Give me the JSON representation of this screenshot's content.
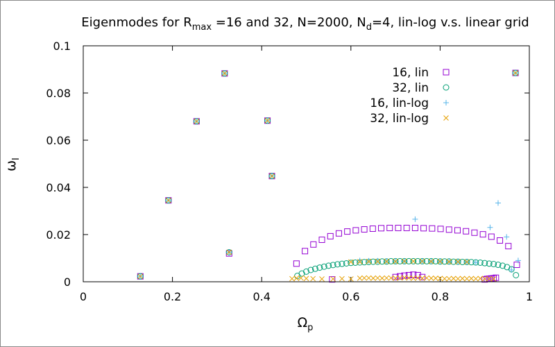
{
  "title": {
    "parts": [
      {
        "text": "Eigenmodes for R",
        "sub": false
      },
      {
        "text": "max",
        "sub": true
      },
      {
        "text": " =16 and 32, N=2000, N",
        "sub": false
      },
      {
        "text": "d",
        "sub": true
      },
      {
        "text": "=4, lin-log v.s. linear grid",
        "sub": false
      }
    ]
  },
  "axes": {
    "xlabel": {
      "main": "Ω",
      "sub": "p"
    },
    "ylabel": {
      "main": "ω",
      "sub": "I"
    }
  },
  "chart_data": {
    "type": "scatter",
    "xlim": [
      0,
      1
    ],
    "ylim": [
      0,
      0.1
    ],
    "xticks": [
      0,
      0.2,
      0.4,
      0.6,
      0.8,
      1
    ],
    "xtick_labels": [
      "0",
      "0.2",
      "0.4",
      "0.6",
      "0.8",
      "1"
    ],
    "yticks": [
      0,
      0.02,
      0.04,
      0.06,
      0.08,
      0.1
    ],
    "ytick_labels": [
      "0",
      "0.02",
      "0.04",
      "0.06",
      "0.08",
      "0.1"
    ],
    "grid": false,
    "legend_position": "top-right",
    "series": [
      {
        "name": "16, lin",
        "marker": "square",
        "color": "#9400d3",
        "x": [
          0.128,
          0.191,
          0.254,
          0.317,
          0.327,
          0.413,
          0.423,
          0.478,
          0.497,
          0.516,
          0.535,
          0.554,
          0.573,
          0.592,
          0.611,
          0.63,
          0.649,
          0.668,
          0.687,
          0.706,
          0.725,
          0.744,
          0.763,
          0.782,
          0.801,
          0.82,
          0.839,
          0.858,
          0.877,
          0.896,
          0.915,
          0.934,
          0.953,
          0.972,
          0.969,
          0.558,
          0.7,
          0.71,
          0.72,
          0.73,
          0.74,
          0.75,
          0.76,
          0.9,
          0.905,
          0.91,
          0.915,
          0.92,
          0.925
        ],
        "y": [
          0.0023,
          0.0345,
          0.068,
          0.0883,
          0.012,
          0.0683,
          0.0448,
          0.0077,
          0.013,
          0.0158,
          0.0178,
          0.0193,
          0.0205,
          0.0213,
          0.0218,
          0.0222,
          0.0225,
          0.0227,
          0.0228,
          0.0228,
          0.0228,
          0.0228,
          0.0227,
          0.0226,
          0.0224,
          0.0221,
          0.0218,
          0.0214,
          0.0208,
          0.0201,
          0.0191,
          0.0175,
          0.0151,
          0.0072,
          0.0885,
          0.001,
          0.002,
          0.0023,
          0.0026,
          0.0028,
          0.003,
          0.0028,
          0.002,
          0.001,
          0.0012,
          0.0013,
          0.0014,
          0.0015,
          0.0017
        ]
      },
      {
        "name": "32, lin",
        "marker": "circle",
        "color": "#009e73",
        "x": [
          0.128,
          0.191,
          0.254,
          0.317,
          0.327,
          0.413,
          0.423,
          0.969,
          0.48,
          0.49,
          0.5,
          0.51,
          0.52,
          0.53,
          0.54,
          0.55,
          0.56,
          0.57,
          0.58,
          0.59,
          0.6,
          0.61,
          0.62,
          0.63,
          0.64,
          0.65,
          0.66,
          0.67,
          0.68,
          0.69,
          0.7,
          0.71,
          0.72,
          0.73,
          0.74,
          0.75,
          0.76,
          0.77,
          0.78,
          0.79,
          0.8,
          0.81,
          0.82,
          0.83,
          0.84,
          0.85,
          0.86,
          0.87,
          0.88,
          0.89,
          0.9,
          0.91,
          0.92,
          0.93,
          0.94,
          0.95,
          0.96,
          0.97
        ],
        "y": [
          0.0023,
          0.0345,
          0.068,
          0.0883,
          0.0125,
          0.0683,
          0.0448,
          0.0885,
          0.0025,
          0.0035,
          0.0043,
          0.005,
          0.0055,
          0.006,
          0.0064,
          0.0068,
          0.0071,
          0.0074,
          0.0076,
          0.0078,
          0.008,
          0.0081,
          0.0082,
          0.0083,
          0.0084,
          0.0085,
          0.0085,
          0.0086,
          0.0086,
          0.0087,
          0.0087,
          0.0087,
          0.0087,
          0.0087,
          0.0087,
          0.0087,
          0.0087,
          0.0087,
          0.0087,
          0.0087,
          0.0086,
          0.0086,
          0.0086,
          0.0085,
          0.0085,
          0.0084,
          0.0084,
          0.0083,
          0.0082,
          0.0081,
          0.0079,
          0.0077,
          0.0075,
          0.0072,
          0.0068,
          0.0062,
          0.0053,
          0.0028
        ]
      },
      {
        "name": "16, lin-log",
        "marker": "plus",
        "color": "#56b4e9",
        "x": [
          0.128,
          0.191,
          0.254,
          0.317,
          0.327,
          0.413,
          0.423,
          0.969,
          0.744,
          0.93,
          0.912,
          0.949,
          0.975,
          0.96,
          0.62,
          0.64,
          0.66,
          0.68,
          0.7,
          0.72,
          0.76,
          0.78,
          0.8,
          0.82,
          0.84,
          0.86,
          0.88
        ],
        "y": [
          0.0023,
          0.0345,
          0.068,
          0.0883,
          0.0125,
          0.0683,
          0.0448,
          0.0885,
          0.0265,
          0.0334,
          0.023,
          0.019,
          0.009,
          0.005,
          0.009,
          0.0089,
          0.0089,
          0.0088,
          0.0088,
          0.0087,
          0.0087,
          0.0086,
          0.0086,
          0.0085,
          0.0084,
          0.0083,
          0.0082
        ]
      },
      {
        "name": "32, lin-log",
        "marker": "x",
        "color": "#e69f00",
        "x": [
          0.128,
          0.191,
          0.254,
          0.317,
          0.327,
          0.413,
          0.423,
          0.969,
          0.468,
          0.478,
          0.488,
          0.5,
          0.515,
          0.535,
          0.56,
          0.58,
          0.6,
          0.62,
          0.63,
          0.64,
          0.65,
          0.66,
          0.67,
          0.68,
          0.69,
          0.7,
          0.71,
          0.72,
          0.73,
          0.74,
          0.75,
          0.76,
          0.77,
          0.78,
          0.79,
          0.8,
          0.81,
          0.82,
          0.83,
          0.84,
          0.85,
          0.86,
          0.87,
          0.88,
          0.89,
          0.9,
          0.91,
          0.92,
          0.6,
          0.62,
          0.64,
          0.66,
          0.68,
          0.7,
          0.72,
          0.74,
          0.76,
          0.78,
          0.8,
          0.82,
          0.84,
          0.86
        ],
        "y": [
          0.0023,
          0.0345,
          0.068,
          0.0883,
          0.0125,
          0.0683,
          0.0448,
          0.0885,
          0.0013,
          0.0015,
          0.0016,
          0.0014,
          0.0013,
          0.0012,
          0.0012,
          0.0013,
          0.0012,
          0.0015,
          0.0016,
          0.0016,
          0.0015,
          0.0016,
          0.0015,
          0.0016,
          0.0016,
          0.0015,
          0.0016,
          0.0017,
          0.0016,
          0.0015,
          0.0016,
          0.0015,
          0.0016,
          0.0015,
          0.0015,
          0.0014,
          0.0013,
          0.0013,
          0.0014,
          0.0013,
          0.0014,
          0.0013,
          0.0014,
          0.0013,
          0.0014,
          0.0013,
          0.0013,
          0.0012,
          0.0084,
          0.0085,
          0.0086,
          0.0086,
          0.0086,
          0.0086,
          0.0087,
          0.0087,
          0.0087,
          0.0086,
          0.0086,
          0.0085,
          0.0085,
          0.0084
        ]
      }
    ]
  }
}
